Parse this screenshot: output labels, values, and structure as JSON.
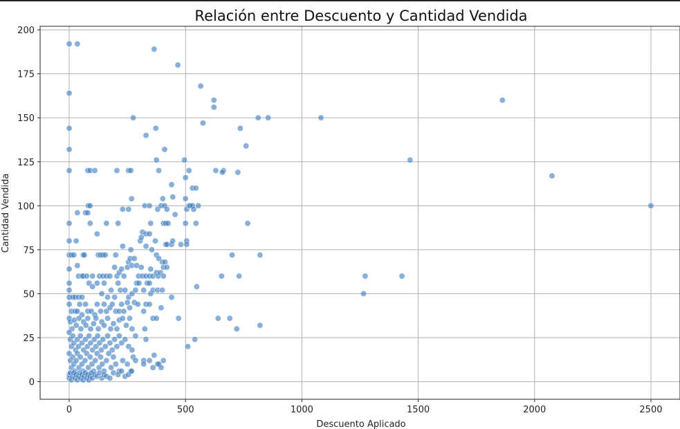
{
  "chart_data": {
    "type": "scatter",
    "title": "Relación entre Descuento y Cantidad Vendida",
    "xlabel": "Descuento Aplicado",
    "ylabel": "Cantidad Vendida",
    "xlim": [
      -125,
      2625
    ],
    "ylim": [
      -10,
      202
    ],
    "xticks": [
      0,
      500,
      1000,
      1500,
      2000,
      2500
    ],
    "yticks": [
      0,
      25,
      50,
      75,
      100,
      125,
      150,
      175,
      200
    ],
    "grid": true,
    "point_color": "#3a7cc0",
    "points": [
      [
        0,
        192
      ],
      [
        35,
        192
      ],
      [
        365,
        189
      ],
      [
        467,
        180
      ],
      [
        565,
        168
      ],
      [
        622,
        160
      ],
      [
        622,
        156
      ],
      [
        1862,
        160
      ],
      [
        0,
        164
      ],
      [
        0,
        144
      ],
      [
        0,
        132
      ],
      [
        0,
        120
      ],
      [
        0,
        90
      ],
      [
        0,
        80
      ],
      [
        275,
        150
      ],
      [
        575,
        147
      ],
      [
        812,
        150
      ],
      [
        855,
        150
      ],
      [
        1082,
        150
      ],
      [
        330,
        140
      ],
      [
        372,
        144
      ],
      [
        735,
        144
      ],
      [
        410,
        132
      ],
      [
        760,
        134
      ],
      [
        495,
        126
      ],
      [
        375,
        126
      ],
      [
        1465,
        126
      ],
      [
        2075,
        117
      ],
      [
        80,
        120
      ],
      [
        90,
        120
      ],
      [
        110,
        120
      ],
      [
        205,
        120
      ],
      [
        255,
        120
      ],
      [
        265,
        120
      ],
      [
        385,
        120
      ],
      [
        515,
        120
      ],
      [
        630,
        120
      ],
      [
        663,
        120
      ],
      [
        658,
        119
      ],
      [
        725,
        119
      ],
      [
        500,
        116
      ],
      [
        440,
        112
      ],
      [
        530,
        110
      ],
      [
        545,
        110
      ],
      [
        268,
        104
      ],
      [
        402,
        104
      ],
      [
        445,
        105
      ],
      [
        500,
        104
      ],
      [
        35,
        96
      ],
      [
        70,
        96
      ],
      [
        80,
        96
      ],
      [
        82,
        100
      ],
      [
        90,
        100
      ],
      [
        230,
        98
      ],
      [
        255,
        98
      ],
      [
        325,
        100
      ],
      [
        345,
        100
      ],
      [
        380,
        98
      ],
      [
        395,
        100
      ],
      [
        410,
        100
      ],
      [
        420,
        98
      ],
      [
        455,
        95
      ],
      [
        505,
        98
      ],
      [
        515,
        100
      ],
      [
        520,
        100
      ],
      [
        530,
        100
      ],
      [
        535,
        98
      ],
      [
        555,
        100
      ],
      [
        2500,
        100
      ],
      [
        90,
        90
      ],
      [
        120,
        84
      ],
      [
        160,
        90
      ],
      [
        210,
        90
      ],
      [
        350,
        90
      ],
      [
        405,
        90
      ],
      [
        415,
        90
      ],
      [
        425,
        90
      ],
      [
        500,
        90
      ],
      [
        545,
        90
      ],
      [
        767,
        90
      ],
      [
        30,
        80
      ],
      [
        0,
        72
      ],
      [
        10,
        72
      ],
      [
        20,
        72
      ],
      [
        60,
        72
      ],
      [
        65,
        72
      ],
      [
        125,
        72
      ],
      [
        135,
        72
      ],
      [
        145,
        72
      ],
      [
        155,
        72
      ],
      [
        200,
        72
      ],
      [
        230,
        77
      ],
      [
        265,
        75
      ],
      [
        305,
        80
      ],
      [
        310,
        82
      ],
      [
        315,
        85
      ],
      [
        330,
        84
      ],
      [
        345,
        84
      ],
      [
        330,
        77
      ],
      [
        355,
        75
      ],
      [
        370,
        80
      ],
      [
        375,
        72
      ],
      [
        385,
        70
      ],
      [
        400,
        68
      ],
      [
        405,
        65
      ],
      [
        415,
        78
      ],
      [
        420,
        78
      ],
      [
        440,
        78
      ],
      [
        445,
        80
      ],
      [
        480,
        78
      ],
      [
        505,
        80
      ],
      [
        505,
        78
      ],
      [
        700,
        72
      ],
      [
        820,
        72
      ],
      [
        0,
        64
      ],
      [
        35,
        66
      ],
      [
        40,
        60
      ],
      [
        55,
        60
      ],
      [
        60,
        60
      ],
      [
        75,
        60
      ],
      [
        100,
        60
      ],
      [
        130,
        60
      ],
      [
        145,
        60
      ],
      [
        160,
        60
      ],
      [
        175,
        60
      ],
      [
        195,
        65
      ],
      [
        205,
        60
      ],
      [
        215,
        62
      ],
      [
        225,
        64
      ],
      [
        235,
        60
      ],
      [
        250,
        65
      ],
      [
        255,
        68
      ],
      [
        262,
        70
      ],
      [
        270,
        66
      ],
      [
        280,
        70
      ],
      [
        290,
        66
      ],
      [
        298,
        60
      ],
      [
        310,
        65
      ],
      [
        315,
        60
      ],
      [
        330,
        60
      ],
      [
        345,
        60
      ],
      [
        350,
        64
      ],
      [
        360,
        60
      ],
      [
        375,
        62
      ],
      [
        382,
        60
      ],
      [
        392,
        62
      ],
      [
        405,
        60
      ],
      [
        412,
        68
      ],
      [
        420,
        65
      ],
      [
        655,
        60
      ],
      [
        730,
        60
      ],
      [
        1272,
        60
      ],
      [
        1430,
        60
      ],
      [
        0,
        56
      ],
      [
        0,
        52
      ],
      [
        0,
        48
      ],
      [
        15,
        48
      ],
      [
        25,
        48
      ],
      [
        40,
        48
      ],
      [
        55,
        48
      ],
      [
        85,
        56
      ],
      [
        100,
        54
      ],
      [
        120,
        56
      ],
      [
        140,
        50
      ],
      [
        150,
        56
      ],
      [
        165,
        48
      ],
      [
        180,
        52
      ],
      [
        195,
        48
      ],
      [
        210,
        56
      ],
      [
        220,
        52
      ],
      [
        240,
        52
      ],
      [
        255,
        48
      ],
      [
        270,
        50
      ],
      [
        285,
        52
      ],
      [
        290,
        56
      ],
      [
        300,
        56
      ],
      [
        320,
        52
      ],
      [
        335,
        56
      ],
      [
        345,
        56
      ],
      [
        350,
        50
      ],
      [
        360,
        52
      ],
      [
        380,
        52
      ],
      [
        400,
        52
      ],
      [
        440,
        48
      ],
      [
        548,
        54
      ],
      [
        1265,
        50
      ],
      [
        0,
        44
      ],
      [
        10,
        40
      ],
      [
        25,
        40
      ],
      [
        35,
        40
      ],
      [
        45,
        44
      ],
      [
        55,
        38
      ],
      [
        70,
        44
      ],
      [
        80,
        40
      ],
      [
        95,
        40
      ],
      [
        110,
        38
      ],
      [
        120,
        44
      ],
      [
        135,
        40
      ],
      [
        150,
        44
      ],
      [
        160,
        40
      ],
      [
        175,
        42
      ],
      [
        185,
        44
      ],
      [
        200,
        40
      ],
      [
        215,
        40
      ],
      [
        225,
        44
      ],
      [
        235,
        40
      ],
      [
        250,
        45
      ],
      [
        260,
        42
      ],
      [
        280,
        45
      ],
      [
        295,
        44
      ],
      [
        320,
        40
      ],
      [
        330,
        44
      ],
      [
        345,
        44
      ],
      [
        360,
        36
      ],
      [
        375,
        36
      ],
      [
        395,
        42
      ],
      [
        470,
        36
      ],
      [
        640,
        36
      ],
      [
        690,
        36
      ],
      [
        720,
        30
      ],
      [
        820,
        32
      ],
      [
        0,
        36
      ],
      [
        5,
        34
      ],
      [
        12,
        30
      ],
      [
        22,
        35
      ],
      [
        30,
        32
      ],
      [
        42,
        36
      ],
      [
        50,
        30
      ],
      [
        62,
        34
      ],
      [
        72,
        32
      ],
      [
        80,
        36
      ],
      [
        92,
        30
      ],
      [
        105,
        33
      ],
      [
        115,
        36
      ],
      [
        125,
        30
      ],
      [
        140,
        34
      ],
      [
        150,
        32
      ],
      [
        165,
        36
      ],
      [
        178,
        30
      ],
      [
        190,
        33
      ],
      [
        205,
        30
      ],
      [
        215,
        35
      ],
      [
        230,
        36
      ],
      [
        245,
        32
      ],
      [
        260,
        36
      ],
      [
        270,
        30
      ],
      [
        285,
        26
      ],
      [
        325,
        30
      ],
      [
        330,
        24
      ],
      [
        540,
        24
      ],
      [
        510,
        20
      ],
      [
        0,
        28
      ],
      [
        5,
        24
      ],
      [
        10,
        20
      ],
      [
        15,
        26
      ],
      [
        20,
        22
      ],
      [
        28,
        18
      ],
      [
        35,
        24
      ],
      [
        40,
        20
      ],
      [
        48,
        26
      ],
      [
        55,
        22
      ],
      [
        62,
        18
      ],
      [
        70,
        24
      ],
      [
        78,
        20
      ],
      [
        85,
        26
      ],
      [
        92,
        22
      ],
      [
        100,
        18
      ],
      [
        108,
        24
      ],
      [
        115,
        20
      ],
      [
        122,
        26
      ],
      [
        130,
        22
      ],
      [
        138,
        18
      ],
      [
        145,
        24
      ],
      [
        155,
        20
      ],
      [
        165,
        26
      ],
      [
        175,
        22
      ],
      [
        185,
        18
      ],
      [
        195,
        24
      ],
      [
        205,
        20
      ],
      [
        215,
        26
      ],
      [
        225,
        22
      ],
      [
        240,
        24
      ],
      [
        255,
        20
      ],
      [
        270,
        18
      ],
      [
        0,
        16
      ],
      [
        5,
        12
      ],
      [
        10,
        8
      ],
      [
        15,
        14
      ],
      [
        20,
        10
      ],
      [
        25,
        6
      ],
      [
        30,
        12
      ],
      [
        35,
        16
      ],
      [
        42,
        8
      ],
      [
        48,
        14
      ],
      [
        55,
        10
      ],
      [
        60,
        6
      ],
      [
        68,
        12
      ],
      [
        75,
        16
      ],
      [
        82,
        8
      ],
      [
        90,
        14
      ],
      [
        98,
        10
      ],
      [
        105,
        6
      ],
      [
        112,
        12
      ],
      [
        120,
        16
      ],
      [
        128,
        8
      ],
      [
        135,
        14
      ],
      [
        142,
        10
      ],
      [
        150,
        6
      ],
      [
        160,
        12
      ],
      [
        170,
        16
      ],
      [
        180,
        8
      ],
      [
        190,
        14
      ],
      [
        200,
        10
      ],
      [
        215,
        6
      ],
      [
        230,
        12
      ],
      [
        250,
        10
      ],
      [
        265,
        6
      ],
      [
        275,
        14
      ],
      [
        285,
        12
      ],
      [
        320,
        12
      ],
      [
        345,
        12
      ],
      [
        365,
        15
      ],
      [
        380,
        10
      ],
      [
        385,
        10
      ],
      [
        395,
        8
      ],
      [
        405,
        12
      ],
      [
        320,
        10
      ],
      [
        0,
        4
      ],
      [
        0,
        2
      ],
      [
        5,
        5
      ],
      [
        10,
        1
      ],
      [
        15,
        3
      ],
      [
        20,
        5
      ],
      [
        25,
        2
      ],
      [
        30,
        4
      ],
      [
        35,
        1
      ],
      [
        40,
        3
      ],
      [
        45,
        5
      ],
      [
        50,
        2
      ],
      [
        55,
        4
      ],
      [
        60,
        1
      ],
      [
        65,
        3
      ],
      [
        70,
        5
      ],
      [
        75,
        2
      ],
      [
        80,
        4
      ],
      [
        85,
        1
      ],
      [
        90,
        3
      ],
      [
        95,
        5
      ],
      [
        100,
        2
      ],
      [
        110,
        4
      ],
      [
        120,
        3
      ],
      [
        130,
        5
      ],
      [
        140,
        2
      ],
      [
        150,
        4
      ],
      [
        160,
        3
      ],
      [
        175,
        2
      ],
      [
        190,
        5
      ],
      [
        210,
        4
      ],
      [
        225,
        6
      ],
      [
        240,
        3
      ],
      [
        255,
        4
      ],
      [
        268,
        6
      ],
      [
        360,
        8
      ]
    ]
  }
}
